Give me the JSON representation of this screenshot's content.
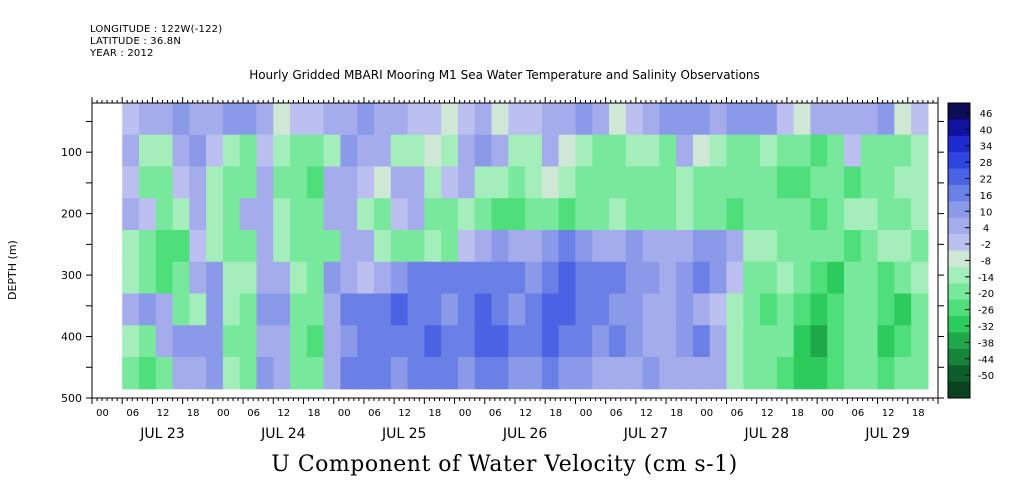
{
  "header": {
    "longitude": "LONGITUDE : 122W(-122)",
    "latitude": "LATITUDE : 36.8N",
    "year": "YEAR : 2012",
    "title": "Hourly Gridded MBARI Mooring M1 Sea Water Temperature and Salinity Observations"
  },
  "caption": "U Component of Water Velocity (cm s-1)",
  "chart_data": {
    "type": "heatmap",
    "title": "Hourly Gridded MBARI Mooring M1 Sea Water Temperature and Salinity Observations",
    "xlabel": "",
    "ylabel": "DEPTH (m)",
    "x_hour_ticks": [
      "00",
      "06",
      "12",
      "18",
      "00",
      "06",
      "12",
      "18",
      "00",
      "06",
      "12",
      "18",
      "00",
      "06",
      "12",
      "18",
      "00",
      "06",
      "12",
      "18",
      "00",
      "06",
      "12",
      "18",
      "00",
      "06",
      "12",
      "18"
    ],
    "x_day_labels": [
      "JUL 23",
      "JUL 24",
      "JUL 25",
      "JUL 26",
      "JUL 27",
      "JUL 28",
      "JUL 29"
    ],
    "y_ticks": [
      100,
      200,
      300,
      400,
      500
    ],
    "ylim": [
      500,
      0
    ],
    "colorbar": {
      "labels": [
        "46",
        "40",
        "34",
        "28",
        "22",
        "16",
        "10",
        "4",
        "-2",
        "-8",
        "-14",
        "-20",
        "-26",
        "-32",
        "-38",
        "-44",
        "-50"
      ],
      "range": [
        -50,
        52
      ],
      "colors": [
        "#0c0c57",
        "#1111a0",
        "#1c2ad0",
        "#2e45e0",
        "#4a62e4",
        "#6a80e6",
        "#8a9ae8",
        "#a4acec",
        "#bcc0f0",
        "#cfe8d6",
        "#a4eebc",
        "#78e89c",
        "#4ede7a",
        "#2ccc5c",
        "#1ea84a",
        "#16843a",
        "#0e5e2c",
        "#0a4220"
      ]
    },
    "series": [
      {
        "values": [
          [
            4,
            10,
            12,
            14,
            12,
            10,
            16,
            16,
            10,
            -2,
            4,
            6,
            8,
            12,
            14,
            10,
            8,
            6,
            4,
            -2,
            6,
            8,
            -4,
            2,
            6,
            10,
            12,
            14,
            10,
            -2,
            4,
            10,
            14,
            16,
            16,
            12,
            14,
            16,
            14,
            4,
            -2,
            10,
            12,
            8,
            10,
            14,
            -2,
            4
          ],
          [
            8,
            -8,
            -10,
            12,
            16,
            4,
            -8,
            -14,
            2,
            -10,
            -14,
            -14,
            -8,
            14,
            12,
            10,
            -8,
            -10,
            -2,
            -8,
            12,
            14,
            10,
            -8,
            -8,
            10,
            -4,
            -10,
            -14,
            -16,
            -10,
            -8,
            -14,
            12,
            -4,
            -10,
            -12,
            -14,
            -10,
            -14,
            -12,
            -18,
            -14,
            4,
            -12,
            -14,
            -16,
            -10
          ],
          [
            4,
            -14,
            -16,
            4,
            10,
            -8,
            -14,
            -16,
            10,
            -12,
            -16,
            -18,
            10,
            12,
            4,
            -4,
            10,
            12,
            -8,
            4,
            10,
            -8,
            -10,
            -14,
            -10,
            -4,
            -10,
            -12,
            -14,
            -16,
            -14,
            -12,
            -16,
            -8,
            -12,
            -14,
            -14,
            -12,
            -16,
            -18,
            -20,
            -16,
            -14,
            -18,
            -16,
            -14,
            -10,
            -8
          ],
          [
            8,
            6,
            -14,
            -10,
            12,
            -10,
            -14,
            10,
            12,
            -10,
            -14,
            -16,
            10,
            8,
            -8,
            -12,
            4,
            10,
            -12,
            -16,
            -10,
            -14,
            -18,
            -20,
            -16,
            -14,
            -18,
            -16,
            -14,
            -10,
            -12,
            -16,
            -14,
            -10,
            -16,
            -14,
            -18,
            -16,
            -12,
            -14,
            -16,
            -18,
            -14,
            -10,
            -8,
            -12,
            -14,
            -10
          ],
          [
            -10,
            -16,
            -20,
            -18,
            6,
            -10,
            -16,
            -14,
            8,
            -10,
            -12,
            -16,
            -14,
            10,
            10,
            -8,
            -12,
            -16,
            -10,
            -12,
            4,
            10,
            14,
            8,
            12,
            16,
            18,
            14,
            10,
            12,
            14,
            12,
            10,
            8,
            14,
            16,
            10,
            -8,
            -10,
            -14,
            -12,
            -16,
            -14,
            -18,
            -16,
            -10,
            -8,
            -12
          ],
          [
            -10,
            -16,
            -18,
            -14,
            12,
            16,
            -8,
            -10,
            8,
            12,
            -10,
            -16,
            14,
            10,
            4,
            12,
            16,
            22,
            22,
            20,
            18,
            22,
            20,
            18,
            14,
            22,
            24,
            20,
            22,
            18,
            16,
            14,
            12,
            16,
            18,
            14,
            4,
            -12,
            -14,
            -10,
            -16,
            -20,
            -22,
            -16,
            -14,
            -18,
            -12,
            -10
          ],
          [
            10,
            14,
            12,
            -12,
            -10,
            14,
            -8,
            -14,
            16,
            14,
            -12,
            -16,
            12,
            18,
            20,
            22,
            24,
            22,
            18,
            16,
            20,
            24,
            22,
            16,
            20,
            24,
            26,
            20,
            18,
            16,
            14,
            12,
            10,
            14,
            10,
            4,
            -8,
            -16,
            -18,
            -12,
            -20,
            -24,
            -18,
            -14,
            -16,
            -20,
            -22,
            -16
          ],
          [
            -8,
            -14,
            12,
            16,
            14,
            16,
            -12,
            -16,
            10,
            12,
            -14,
            -18,
            8,
            16,
            22,
            20,
            18,
            22,
            24,
            20,
            22,
            26,
            24,
            18,
            22,
            24,
            22,
            18,
            16,
            20,
            14,
            10,
            12,
            16,
            18,
            10,
            -8,
            -12,
            -14,
            -16,
            -24,
            -28,
            -20,
            -14,
            -16,
            -22,
            -18,
            -14
          ],
          [
            -14,
            -18,
            -12,
            10,
            12,
            14,
            -10,
            -14,
            14,
            12,
            -14,
            -12,
            10,
            20,
            22,
            18,
            16,
            20,
            22,
            18,
            16,
            20,
            18,
            14,
            16,
            18,
            16,
            14,
            12,
            10,
            12,
            14,
            10,
            8,
            12,
            8,
            -10,
            -14,
            -16,
            -18,
            -26,
            -24,
            -18,
            -12,
            -14,
            -20,
            -16,
            -12
          ]
        ]
      }
    ],
    "blank_segments_hours": [
      [
        0,
        6
      ],
      [
        141,
        144
      ],
      [
        290,
        304
      ],
      [
        312,
        315
      ],
      [
        418,
        422
      ],
      [
        426,
        434
      ]
    ]
  }
}
